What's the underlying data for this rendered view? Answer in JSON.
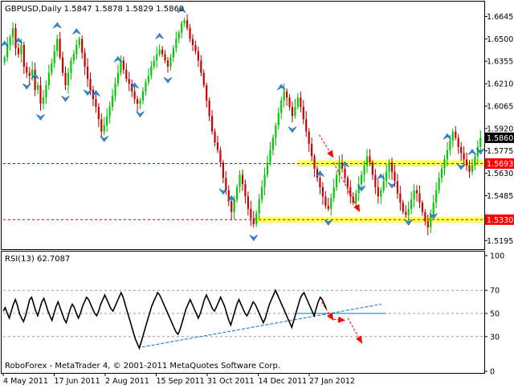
{
  "window": {
    "symbol_header": "GBPUSD,Daily  1.5847 1.5878 1.5829 1.5860",
    "rsi_header": "RSI(13) 62.7087",
    "watermark": "RoboForex - MetaTrader 4, © 2001-2011 MetaQuotes Software Corp."
  },
  "chart_data": [
    {
      "type": "candlestick",
      "title": "GBPUSD,Daily",
      "ohlc_header": {
        "open": 1.5847,
        "high": 1.5878,
        "low": 1.5829,
        "close": 1.586
      },
      "ylim": [
        1.516,
        1.672
      ],
      "y_ticks": [
        "1.6645",
        "1.6500",
        "1.6355",
        "1.6210",
        "1.6065",
        "1.5920",
        "1.5775",
        "1.5630",
        "1.5485",
        "1.5340",
        "1.5195"
      ],
      "x_ticks": [
        "4 May 2011",
        "17 Jun 2011",
        "2 Aug 2011",
        "15 Sep 2011",
        "31 Oct 2011",
        "14 Dec 2011",
        "27 Jan 2012"
      ],
      "price_labels": [
        {
          "text": "1.5860",
          "value": 1.586,
          "style": "current"
        },
        {
          "text": "1.5693",
          "value": 1.5693,
          "style": "level"
        },
        {
          "text": "1.5330",
          "value": 1.533,
          "style": "level"
        }
      ],
      "levels": [
        {
          "value": 1.5693,
          "color": "#cc0000",
          "dashed": true
        },
        {
          "value": 1.533,
          "color": "#cc0000",
          "dashed": true
        }
      ],
      "highlight_zones": [
        {
          "from": 1.5675,
          "to": 1.5715,
          "x_start": 0.615,
          "color": "#ffff66"
        },
        {
          "from": 1.531,
          "to": 1.535,
          "x_start": 0.53,
          "color": "#ffff66"
        }
      ],
      "forecast_arrows": [
        {
          "from": [
            0.66,
            1.588
          ],
          "to": [
            0.69,
            1.573
          ]
        },
        {
          "from": [
            0.69,
            1.57
          ],
          "to": [
            0.745,
            1.538
          ]
        }
      ],
      "closes": [
        1.638,
        1.646,
        1.651,
        1.657,
        1.644,
        1.64,
        1.646,
        1.632,
        1.628,
        1.626,
        1.63,
        1.617,
        1.62,
        1.608,
        1.612,
        1.62,
        1.628,
        1.634,
        1.642,
        1.65,
        1.638,
        1.628,
        1.62,
        1.628,
        1.636,
        1.64,
        1.646,
        1.65,
        1.641,
        1.632,
        1.624,
        1.617,
        1.611,
        1.606,
        1.598,
        1.59,
        1.594,
        1.6,
        1.606,
        1.613,
        1.621,
        1.628,
        1.636,
        1.63,
        1.624,
        1.621,
        1.616,
        1.611,
        1.608,
        1.61,
        1.616,
        1.622,
        1.626,
        1.632,
        1.636,
        1.64,
        1.643,
        1.64,
        1.636,
        1.632,
        1.638,
        1.644,
        1.65,
        1.654,
        1.66,
        1.662,
        1.657,
        1.65,
        1.646,
        1.642,
        1.636,
        1.628,
        1.62,
        1.61,
        1.6,
        1.59,
        1.583,
        1.578,
        1.57,
        1.56,
        1.552,
        1.545,
        1.538,
        1.546,
        1.554,
        1.562,
        1.556,
        1.548,
        1.54,
        1.534,
        1.53,
        1.537,
        1.546,
        1.554,
        1.562,
        1.57,
        1.578,
        1.586,
        1.594,
        1.602,
        1.61,
        1.616,
        1.612,
        1.606,
        1.6,
        1.606,
        1.612,
        1.606,
        1.598,
        1.59,
        1.582,
        1.574,
        1.566,
        1.56,
        1.554,
        1.548,
        1.542,
        1.54,
        1.547,
        1.554,
        1.562,
        1.57,
        1.566,
        1.56,
        1.554,
        1.548,
        1.544,
        1.55,
        1.556,
        1.562,
        1.568,
        1.574,
        1.57,
        1.562,
        1.554,
        1.548,
        1.552,
        1.558,
        1.564,
        1.57,
        1.564,
        1.558,
        1.55,
        1.544,
        1.538,
        1.536,
        1.54,
        1.546,
        1.552,
        1.55,
        1.544,
        1.538,
        1.532,
        1.528,
        1.536,
        1.544,
        1.552,
        1.56,
        1.566,
        1.572,
        1.578,
        1.584,
        1.59,
        1.586,
        1.58,
        1.576,
        1.572,
        1.568,
        1.564,
        1.568,
        1.574,
        1.58,
        1.586
      ],
      "fractals_up": [
        0,
        5,
        11,
        19,
        26,
        33,
        41,
        47,
        56,
        64,
        82,
        100,
        114,
        123,
        136,
        160,
        169
      ],
      "fractals_down": [
        8,
        13,
        22,
        30,
        36,
        49,
        59,
        79,
        90,
        104,
        117,
        129,
        140,
        146,
        155,
        165,
        172
      ]
    },
    {
      "type": "line",
      "title": "RSI(13)",
      "last_value": 62.7087,
      "ylim": [
        0,
        100
      ],
      "y_ticks": [
        "100",
        "70",
        "50",
        "30",
        "0"
      ],
      "levels": [
        70,
        50,
        30
      ],
      "trendlines": [
        {
          "from": [
            0.29,
            21
          ],
          "to": [
            0.79,
            58
          ],
          "color": "#0070c0",
          "dashed": true
        },
        {
          "from": [
            0.61,
            50
          ],
          "to": [
            0.8,
            50
          ],
          "color": "#0070c0",
          "dashed": false
        }
      ],
      "forecast_arrows": [
        {
          "from": [
            0.665,
            60
          ],
          "to": [
            0.69,
            44
          ]
        },
        {
          "from": [
            0.69,
            45
          ],
          "to": [
            0.715,
            44
          ]
        },
        {
          "from": [
            0.72,
            46
          ],
          "to": [
            0.75,
            24
          ]
        }
      ],
      "values": [
        52,
        55,
        50,
        46,
        52,
        58,
        62,
        57,
        50,
        46,
        43,
        48,
        55,
        62,
        64,
        58,
        52,
        48,
        54,
        60,
        63,
        58,
        52,
        48,
        44,
        50,
        56,
        60,
        55,
        50,
        45,
        42,
        48,
        54,
        58,
        55,
        50,
        46,
        50,
        56,
        60,
        64,
        62,
        58,
        54,
        50,
        48,
        52,
        58,
        62,
        66,
        62,
        58,
        54,
        52,
        56,
        60,
        64,
        68,
        64,
        58,
        52,
        46,
        40,
        34,
        28,
        24,
        20,
        26,
        32,
        38,
        44,
        50,
        56,
        60,
        64,
        68,
        66,
        62,
        58,
        54,
        50,
        46,
        42,
        38,
        34,
        32,
        36,
        42,
        48,
        54,
        58,
        62,
        58,
        54,
        50,
        46,
        50,
        56,
        62,
        66,
        62,
        58,
        54,
        52,
        56,
        60,
        64,
        60,
        56,
        50,
        44,
        40,
        46,
        52,
        58,
        62,
        58,
        54,
        50,
        48,
        52,
        56,
        60,
        58,
        54,
        50,
        46,
        42,
        46,
        52,
        58,
        62,
        66,
        70,
        66,
        62,
        58,
        54,
        50,
        46,
        42,
        38,
        44,
        50,
        56,
        62,
        66,
        68,
        64,
        60,
        56,
        52,
        48,
        54,
        60,
        64,
        62,
        58,
        54
      ]
    }
  ]
}
